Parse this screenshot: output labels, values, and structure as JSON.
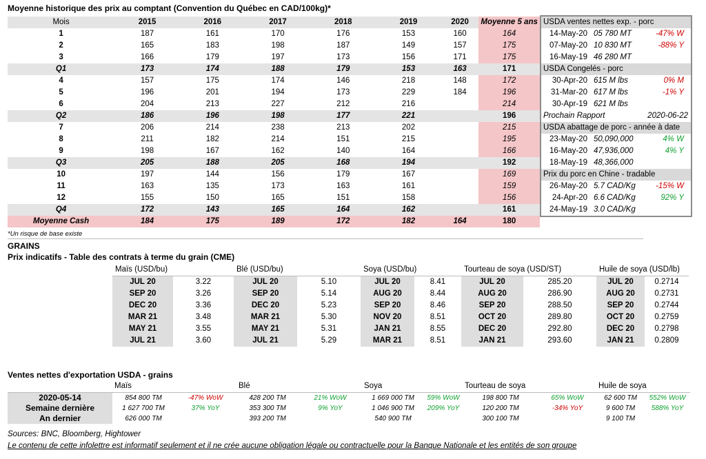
{
  "hist": {
    "title": "Moyenne historique des prix au comptant (Convention du Québec en CAD/100kg)*",
    "headers": [
      "Mois",
      "2015",
      "2016",
      "2017",
      "2018",
      "2019",
      "2020",
      "Moyenne 5 ans"
    ],
    "rows": [
      {
        "type": "m",
        "cells": [
          "1",
          "187",
          "161",
          "170",
          "176",
          "153",
          "160",
          "164"
        ]
      },
      {
        "type": "m",
        "cells": [
          "2",
          "165",
          "183",
          "198",
          "187",
          "149",
          "157",
          "175"
        ]
      },
      {
        "type": "m",
        "cells": [
          "3",
          "166",
          "179",
          "197",
          "173",
          "156",
          "171",
          "175"
        ]
      },
      {
        "type": "q",
        "cells": [
          "Q1",
          "173",
          "174",
          "188",
          "179",
          "153",
          "163",
          "171"
        ]
      },
      {
        "type": "m",
        "cells": [
          "4",
          "157",
          "175",
          "174",
          "146",
          "218",
          "148",
          "172"
        ]
      },
      {
        "type": "m",
        "cells": [
          "5",
          "196",
          "201",
          "194",
          "173",
          "229",
          "184",
          "196"
        ]
      },
      {
        "type": "m",
        "cells": [
          "6",
          "204",
          "213",
          "227",
          "212",
          "216",
          "",
          "214"
        ]
      },
      {
        "type": "q",
        "cells": [
          "Q2",
          "186",
          "196",
          "198",
          "177",
          "221",
          "",
          "196"
        ]
      },
      {
        "type": "m",
        "cells": [
          "7",
          "206",
          "214",
          "238",
          "213",
          "202",
          "",
          "215"
        ]
      },
      {
        "type": "m",
        "cells": [
          "8",
          "211",
          "182",
          "214",
          "151",
          "215",
          "",
          "195"
        ]
      },
      {
        "type": "m",
        "cells": [
          "9",
          "198",
          "167",
          "162",
          "140",
          "164",
          "",
          "166"
        ]
      },
      {
        "type": "q",
        "cells": [
          "Q3",
          "205",
          "188",
          "205",
          "168",
          "194",
          "",
          "192"
        ]
      },
      {
        "type": "m",
        "cells": [
          "10",
          "197",
          "144",
          "156",
          "179",
          "167",
          "",
          "169"
        ]
      },
      {
        "type": "m",
        "cells": [
          "11",
          "163",
          "135",
          "173",
          "163",
          "161",
          "",
          "159"
        ]
      },
      {
        "type": "m",
        "cells": [
          "12",
          "155",
          "150",
          "165",
          "151",
          "158",
          "",
          "156"
        ]
      },
      {
        "type": "q",
        "cells": [
          "Q4",
          "172",
          "143",
          "165",
          "164",
          "162",
          "",
          "161"
        ]
      },
      {
        "type": "cash",
        "cells": [
          "Moyenne Cash",
          "184",
          "175",
          "189",
          "172",
          "182",
          "164",
          "180"
        ]
      }
    ],
    "footnote": "*Un risque de base existe"
  },
  "side": {
    "sections": [
      {
        "title": "USDA ventes nettes exp. - porc",
        "rows": [
          {
            "date": "14-May-20",
            "value": "05 780  MT",
            "change": "-47% W",
            "color": "red"
          },
          {
            "date": "07-May-20",
            "value": "10 830  MT",
            "change": "-88% Y",
            "color": "red"
          },
          {
            "date": "16-May-19",
            "value": "46 280  MT",
            "change": "",
            "color": ""
          }
        ]
      },
      {
        "title": "USDA Congelés - porc",
        "rows": [
          {
            "date": "30-Apr-20",
            "value": "615 M lbs",
            "change": "0% M",
            "color": "red"
          },
          {
            "date": "31-Mar-20",
            "value": "617 M lbs",
            "change": "-1% Y",
            "color": "red"
          },
          {
            "date": "30-Apr-19",
            "value": "621 M lbs",
            "change": "",
            "color": ""
          }
        ],
        "note_label": "Prochain Rapport",
        "note_value": "2020-06-22"
      },
      {
        "title": "USDA abattage de porc - année à date",
        "rows": [
          {
            "date": "23-May-20",
            "value": "50,090,000",
            "change": "4% W",
            "color": "green"
          },
          {
            "date": "16-May-20",
            "value": "47,936,000",
            "change": "4% Y",
            "color": "green"
          },
          {
            "date": "18-May-19",
            "value": "48,366,000",
            "change": "",
            "color": ""
          }
        ]
      },
      {
        "title": "Prix du porc en Chine - tradable",
        "rows": [
          {
            "date": "26-May-20",
            "value": "5.7 CAD/Kg",
            "change": "-15% W",
            "color": "red"
          },
          {
            "date": "24-Apr-20",
            "value": "6.6 CAD/Kg",
            "change": "92% Y",
            "color": "green"
          },
          {
            "date": "24-May-19",
            "value": "3.0 CAD/Kg",
            "change": "",
            "color": ""
          }
        ]
      }
    ]
  },
  "grains": {
    "heading": "GRAINS",
    "subtitle": "Prix indicatifs - Table des contrats à terme du grain (CME)",
    "columns": [
      {
        "name": "Maïs (USD/bu)",
        "months": [
          "JUL 20",
          "SEP 20",
          "DEC 20",
          "MAR 21",
          "MAY 21",
          "JUL 21"
        ],
        "prices": [
          "3.22",
          "3.26",
          "3.36",
          "3.48",
          "3.55",
          "3.60"
        ]
      },
      {
        "name": "Blé (USD/bu)",
        "months": [
          "JUL 20",
          "SEP 20",
          "DEC 20",
          "MAR 21",
          "MAY 21",
          "JUL 21"
        ],
        "prices": [
          "5.10",
          "5.14",
          "5.23",
          "5.30",
          "5.31",
          "5.29"
        ]
      },
      {
        "name": "Soya (USD/bu)",
        "months": [
          "JUL 20",
          "AUG 20",
          "SEP 20",
          "NOV 20",
          "JAN 21",
          "MAR 21"
        ],
        "prices": [
          "8.41",
          "8.44",
          "8.46",
          "8.51",
          "8.55",
          "8.51"
        ]
      },
      {
        "name": "Tourteau de soya (USD/ST)",
        "months": [
          "JUL 20",
          "AUG 20",
          "SEP 20",
          "OCT 20",
          "DEC 20",
          "JAN 21"
        ],
        "prices": [
          "285.20",
          "286.90",
          "288.50",
          "289.80",
          "292.80",
          "293.60"
        ]
      },
      {
        "name": "Huile de soya (USD/lb)",
        "months": [
          "JUL 20",
          "AUG 20",
          "SEP 20",
          "OCT 20",
          "DEC 20",
          "JAN 21"
        ],
        "prices": [
          "0.2714",
          "0.2731",
          "0.2744",
          "0.2759",
          "0.2798",
          "0.2809"
        ]
      }
    ]
  },
  "exports": {
    "title": "Ventes nettes d'exportation USDA - grains",
    "columns": [
      "Maïs",
      "Blé",
      "Soya",
      "Tourteau de soya",
      "Huile de soya"
    ],
    "row_labels": [
      "2020-05-14",
      "Semaine dernière",
      "An dernier"
    ],
    "data": [
      [
        {
          "v": "854 800 TM",
          "c": "-47% WoW",
          "col": "red"
        },
        {
          "v": "428 200 TM",
          "c": "21% WoW",
          "col": "green"
        },
        {
          "v": "1 669 000 TM",
          "c": "59% WoW",
          "col": "green"
        },
        {
          "v": "198 800 TM",
          "c": "65% WoW",
          "col": "green"
        },
        {
          "v": "62 600 TM",
          "c": "552% WoW",
          "col": "green"
        }
      ],
      [
        {
          "v": "1 627 700 TM",
          "c": "37% YoY",
          "col": "green"
        },
        {
          "v": "353 300 TM",
          "c": "9% YoY",
          "col": "green"
        },
        {
          "v": "1 046 900 TM",
          "c": "209% YoY",
          "col": "green"
        },
        {
          "v": "120 200 TM",
          "c": "-34% YoY",
          "col": "red"
        },
        {
          "v": "9 600 TM",
          "c": "588% YoY",
          "col": "green"
        }
      ],
      [
        {
          "v": "626 000 TM",
          "c": "",
          "col": ""
        },
        {
          "v": "393 200 TM",
          "c": "",
          "col": ""
        },
        {
          "v": "540 900 TM",
          "c": "",
          "col": ""
        },
        {
          "v": "300 100 TM",
          "c": "",
          "col": ""
        },
        {
          "v": "9 100 TM",
          "c": "",
          "col": ""
        }
      ]
    ]
  },
  "footer": {
    "sources": "Sources: BNC, Bloomberg, Hightower",
    "disclaimer": "Le contenu de cette infolettre est informatif seulement et il ne crée aucune obligation légale ou contractuelle pour la Banque Nationale et les entités de son groupe"
  }
}
